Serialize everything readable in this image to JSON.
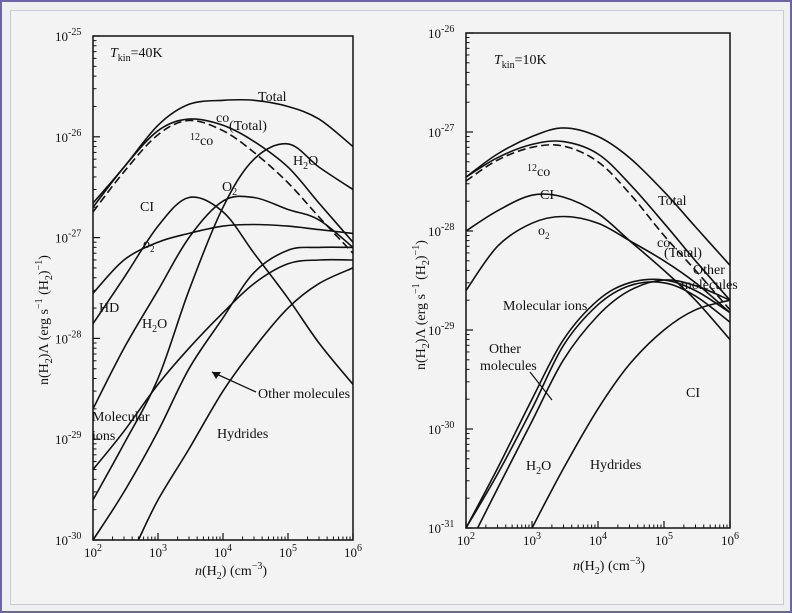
{
  "chart_data": [
    {
      "type": "line",
      "panel": "left",
      "annotation": "T_kin = 40K",
      "xlabel": "n(H2) (cm^-3)",
      "ylabel": "n(H2)Λ (erg s^-1 (H2)^-1)",
      "xscale": "log",
      "yscale": "log",
      "xlim": [
        100,
        1000000
      ],
      "ylim": [
        1e-30,
        1e-25
      ],
      "x_ticks": [
        "10^2",
        "10^3",
        "10^4",
        "10^5",
        "10^6"
      ],
      "y_ticks": [
        "10^-30",
        "10^-29",
        "10^-28",
        "10^-27",
        "10^-26",
        "10^-25"
      ],
      "grid": false,
      "series": [
        {
          "name": "Total",
          "style": "solid",
          "x": [
            100,
            300,
            1000,
            3000,
            10000,
            30000,
            100000,
            300000,
            1000000
          ],
          "y": [
            2.2e-27,
            5e-27,
            1.3e-26,
            2.1e-26,
            2.3e-26,
            2.3e-26,
            2e-26,
            1.5e-26,
            8e-27
          ]
        },
        {
          "name": "CO (Total)",
          "style": "solid",
          "x": [
            100,
            300,
            1000,
            3000,
            10000,
            30000,
            100000,
            300000,
            1000000
          ],
          "y": [
            2e-27,
            5e-27,
            1.15e-26,
            1.5e-26,
            1.3e-26,
            9e-27,
            5e-27,
            2.2e-27,
            9e-28
          ]
        },
        {
          "name": "12CO",
          "style": "dashed",
          "x": [
            100,
            300,
            1000,
            3000,
            10000,
            30000,
            100000,
            300000,
            1000000
          ],
          "y": [
            1.8e-27,
            4.5e-27,
            1.05e-26,
            1.45e-26,
            1.15e-26,
            7e-27,
            3.5e-27,
            1.6e-27,
            7e-28
          ]
        },
        {
          "name": "H2O",
          "style": "solid",
          "x": [
            100,
            300,
            1000,
            3000,
            10000,
            30000,
            100000,
            300000,
            1000000
          ],
          "y": [
            2.5e-30,
            9e-30,
            4e-29,
            3e-28,
            2e-27,
            6e-27,
            8.5e-27,
            5e-27,
            3e-27
          ]
        },
        {
          "name": "CI",
          "style": "solid",
          "x": [
            100,
            300,
            1000,
            3000,
            10000,
            30000,
            100000,
            300000,
            1000000
          ],
          "y": [
            1.4e-28,
            4e-28,
            1.3e-27,
            2.5e-27,
            1.8e-27,
            7e-28,
            2.5e-28,
            9e-29,
            3.5e-29
          ]
        },
        {
          "name": "O2",
          "style": "solid",
          "x": [
            100,
            300,
            1000,
            3000,
            10000,
            30000,
            100000,
            300000,
            1000000
          ],
          "y": [
            2e-29,
            8e-29,
            3e-28,
            1e-27,
            2.3e-27,
            2.5e-27,
            1.9e-27,
            1.5e-27,
            8e-28
          ]
        },
        {
          "name": "HD",
          "style": "solid",
          "x": [
            100,
            300,
            1000,
            3000,
            10000,
            30000,
            100000,
            300000,
            1000000
          ],
          "y": [
            2.8e-28,
            6e-28,
            9e-28,
            1.1e-27,
            1.3e-27,
            1.35e-27,
            1.3e-27,
            1.2e-27,
            1.1e-27
          ]
        },
        {
          "name": "Other molecules",
          "style": "solid",
          "x": [
            100,
            300,
            1000,
            3000,
            10000,
            30000,
            100000,
            300000,
            1000000
          ],
          "y": [
            1e-30,
            3e-30,
            1.2e-29,
            5e-29,
            1.6e-28,
            4.5e-28,
            7.5e-28,
            8e-28,
            8e-28
          ]
        },
        {
          "name": "Molecular ions",
          "style": "solid",
          "x": [
            100,
            300,
            1000,
            3000,
            10000,
            30000,
            100000,
            300000,
            1000000
          ],
          "y": [
            5e-30,
            1.2e-29,
            3.5e-29,
            8e-29,
            1.8e-28,
            3.5e-28,
            5.5e-28,
            6e-28,
            6e-28
          ]
        },
        {
          "name": "Hydrides",
          "style": "solid",
          "x": [
            500,
            1000,
            3000,
            10000,
            30000,
            100000,
            300000,
            1000000
          ],
          "y": [
            1e-30,
            2.5e-30,
            8e-30,
            3e-29,
            8e-29,
            2e-28,
            3.5e-28,
            5e-28
          ]
        }
      ],
      "labels": [
        "Total",
        "CO (Total)",
        "12CO",
        "H2O",
        "CI",
        "O2",
        "O2",
        "HD",
        "H2O",
        "Other molecules",
        "Molecular ions",
        "Hydrides"
      ]
    },
    {
      "type": "line",
      "panel": "right",
      "annotation": "T_kin = 10K",
      "xlabel": "n(H2) (cm^-3)",
      "ylabel": "n(H2)Λ (erg s^-1 (H2)^-1)",
      "xscale": "log",
      "yscale": "log",
      "xlim": [
        100,
        1000000
      ],
      "ylim": [
        1e-31,
        1e-26
      ],
      "x_ticks": [
        "10^2",
        "10^3",
        "10^4",
        "10^5",
        "10^6"
      ],
      "y_ticks": [
        "10^-31",
        "10^-30",
        "10^-29",
        "10^-28",
        "10^-27",
        "10^-26"
      ],
      "grid": false,
      "series": [
        {
          "name": "Total",
          "style": "solid",
          "x": [
            100,
            300,
            1000,
            3000,
            10000,
            30000,
            100000,
            300000,
            1000000
          ],
          "y": [
            3.5e-28,
            6e-28,
            9e-28,
            1.1e-27,
            9e-28,
            5.5e-28,
            2.5e-28,
            1.1e-28,
            4.5e-29
          ]
        },
        {
          "name": "CO (Total)",
          "style": "solid",
          "x": [
            100,
            300,
            1000,
            3000,
            10000,
            30000,
            100000,
            300000,
            1000000
          ],
          "y": [
            3.5e-28,
            5.5e-28,
            7.5e-28,
            8e-28,
            6e-28,
            3e-28,
            1.2e-28,
            5e-29,
            2e-29
          ]
        },
        {
          "name": "12CO",
          "style": "dashed",
          "x": [
            100,
            300,
            1000,
            3000,
            10000,
            30000,
            100000,
            300000,
            1000000
          ],
          "y": [
            3.2e-28,
            5.2e-28,
            7e-28,
            7.2e-28,
            5e-28,
            2.4e-28,
            9e-29,
            4e-29,
            1.6e-29
          ]
        },
        {
          "name": "CI",
          "style": "solid",
          "x": [
            100,
            300,
            1000,
            3000,
            10000,
            30000,
            100000,
            300000,
            1000000
          ],
          "y": [
            1e-28,
            1.6e-28,
            2.3e-28,
            2.2e-28,
            1.5e-28,
            8e-29,
            4e-29,
            2e-29,
            8e-30
          ]
        },
        {
          "name": "O2",
          "style": "solid",
          "x": [
            100,
            300,
            1000,
            3000,
            10000,
            30000,
            100000,
            300000,
            1000000
          ],
          "y": [
            2.5e-29,
            7e-29,
            1.2e-28,
            1.4e-28,
            1.2e-28,
            8e-29,
            5e-29,
            3e-29,
            1.5e-29
          ]
        },
        {
          "name": "Other molecules",
          "style": "solid",
          "x": [
            100,
            300,
            1000,
            3000,
            10000,
            30000,
            100000,
            300000,
            1000000
          ],
          "y": [
            1e-31,
            4e-31,
            2e-30,
            8e-30,
            2e-29,
            3e-29,
            3.2e-29,
            2.5e-29,
            1.5e-29
          ]
        },
        {
          "name": "Molecular ions",
          "style": "solid",
          "x": [
            100,
            300,
            1000,
            3000,
            10000,
            30000,
            100000,
            300000,
            1000000
          ],
          "y": [
            1e-31,
            3.5e-31,
            1.6e-30,
            7e-30,
            1.8e-29,
            2.8e-29,
            3e-29,
            2.2e-29,
            1.2e-29
          ]
        },
        {
          "name": "H2O",
          "style": "solid",
          "x": [
            150,
            300,
            1000,
            3000,
            10000,
            30000,
            100000,
            300000,
            1000000
          ],
          "y": [
            1e-31,
            2.5e-31,
            1.2e-30,
            5e-30,
            1.4e-29,
            2.5e-29,
            3.2e-29,
            2.8e-29,
            2e-29
          ]
        },
        {
          "name": "Hydrides",
          "style": "solid",
          "x": [
            1000,
            3000,
            10000,
            30000,
            100000,
            300000,
            1000000
          ],
          "y": [
            1e-31,
            4e-31,
            1.6e-30,
            4.5e-30,
            1e-29,
            1.6e-29,
            2e-29
          ]
        }
      ],
      "labels": [
        "Total",
        "CO (Total)",
        "12CO",
        "CI",
        "O2",
        "Other molecules",
        "Molecular ions",
        "Other molecules",
        "CI",
        "H2O",
        "Hydrides"
      ]
    }
  ]
}
